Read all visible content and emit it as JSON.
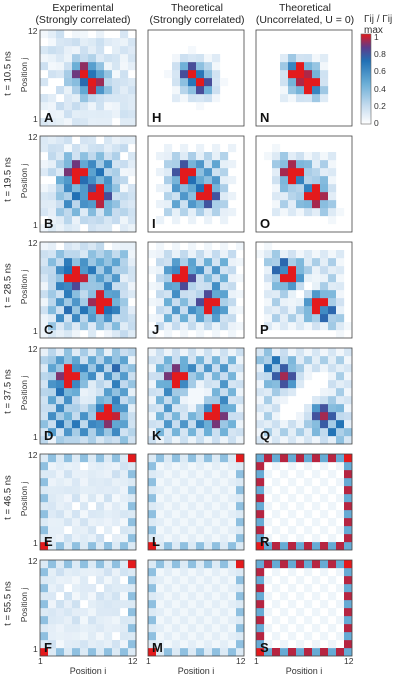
{
  "columns": [
    {
      "title": "Experimental",
      "subtitle": "(Strongly correlated)"
    },
    {
      "title": "Theoretical",
      "subtitle": "(Strongly correlated)"
    },
    {
      "title": "Theoretical",
      "subtitle": "(Uncorrelated, U = 0)"
    }
  ],
  "rows": [
    {
      "time_label": "t = 10.5 ns",
      "letters": [
        "A",
        "H",
        "N"
      ]
    },
    {
      "time_label": "t = 19.5 ns",
      "letters": [
        "B",
        "I",
        "O"
      ]
    },
    {
      "time_label": "t = 28.5 ns",
      "letters": [
        "C",
        "J",
        "P"
      ]
    },
    {
      "time_label": "t = 37.5 ns",
      "letters": [
        "D",
        "K",
        "Q"
      ]
    },
    {
      "time_label": "t = 46.5 ns",
      "letters": [
        "E",
        "L",
        "R"
      ]
    },
    {
      "time_label": "t = 55.5 ns",
      "letters": [
        "F",
        "M",
        "S"
      ]
    }
  ],
  "axes": {
    "ylabel": "Position j",
    "xlabel": "Position i",
    "y_ticks": [
      "12",
      "1"
    ],
    "x_ticks": [
      "1",
      "12"
    ]
  },
  "colorbar": {
    "title": "Γij / Γij max",
    "ticks": [
      "1",
      "0.8",
      "0.6",
      "0.4",
      "0.2",
      "0"
    ],
    "colors": [
      "#ffffff",
      "#c6dcef",
      "#6aaed6",
      "#2171b5",
      "#5b3c8c",
      "#e31a1c"
    ]
  },
  "chart_data": {
    "type": "heatmap",
    "grid_size": 12,
    "x_range": [
      1,
      12
    ],
    "y_range": [
      1,
      12
    ],
    "value_range": [
      0,
      1
    ],
    "panels": [
      {
        "letter": "A",
        "row": 0,
        "col": 0,
        "time_ns": 10.5,
        "spread": 1.2,
        "style": "exp"
      },
      {
        "letter": "H",
        "row": 0,
        "col": 1,
        "time_ns": 10.5,
        "spread": 1.2,
        "style": "theo"
      },
      {
        "letter": "N",
        "row": 0,
        "col": 2,
        "time_ns": 10.5,
        "spread": 1.2,
        "style": "free"
      },
      {
        "letter": "B",
        "row": 1,
        "col": 0,
        "time_ns": 19.5,
        "spread": 2.3,
        "style": "exp"
      },
      {
        "letter": "I",
        "row": 1,
        "col": 1,
        "time_ns": 19.5,
        "spread": 2.3,
        "style": "theo"
      },
      {
        "letter": "O",
        "row": 1,
        "col": 2,
        "time_ns": 19.5,
        "spread": 2.3,
        "style": "free"
      },
      {
        "letter": "C",
        "row": 2,
        "col": 0,
        "time_ns": 28.5,
        "spread": 3.3,
        "style": "exp"
      },
      {
        "letter": "J",
        "row": 2,
        "col": 1,
        "time_ns": 28.5,
        "spread": 3.3,
        "style": "theo"
      },
      {
        "letter": "P",
        "row": 2,
        "col": 2,
        "time_ns": 28.5,
        "spread": 3.3,
        "style": "free"
      },
      {
        "letter": "D",
        "row": 3,
        "col": 0,
        "time_ns": 37.5,
        "spread": 4.4,
        "style": "exp"
      },
      {
        "letter": "K",
        "row": 3,
        "col": 1,
        "time_ns": 37.5,
        "spread": 4.4,
        "style": "theo"
      },
      {
        "letter": "Q",
        "row": 3,
        "col": 2,
        "time_ns": 37.5,
        "spread": 4.4,
        "style": "free"
      },
      {
        "letter": "E",
        "row": 4,
        "col": 0,
        "time_ns": 46.5,
        "spread": 5.5,
        "style": "exp"
      },
      {
        "letter": "L",
        "row": 4,
        "col": 1,
        "time_ns": 46.5,
        "spread": 5.5,
        "style": "theo"
      },
      {
        "letter": "R",
        "row": 4,
        "col": 2,
        "time_ns": 46.5,
        "spread": 5.5,
        "style": "free"
      },
      {
        "letter": "F",
        "row": 5,
        "col": 0,
        "time_ns": 55.5,
        "spread": 5.5,
        "style": "exp"
      },
      {
        "letter": "M",
        "row": 5,
        "col": 1,
        "time_ns": 55.5,
        "spread": 5.5,
        "style": "theo"
      },
      {
        "letter": "S",
        "row": 5,
        "col": 2,
        "time_ns": 55.5,
        "spread": 5.5,
        "style": "free"
      }
    ]
  }
}
